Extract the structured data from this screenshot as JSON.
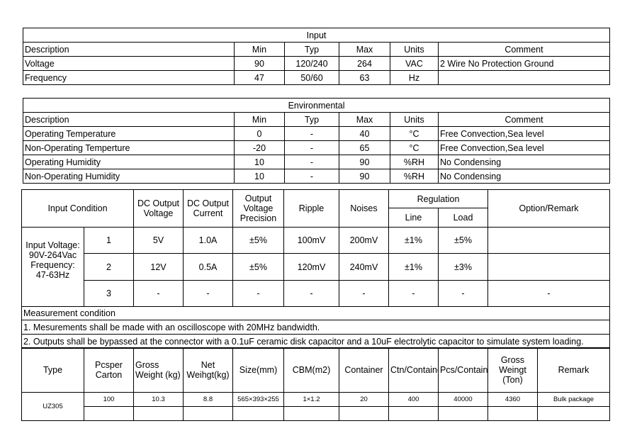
{
  "input": {
    "title": "Input",
    "headers": [
      "Description",
      "Min",
      "Typ",
      "Max",
      "Units",
      "Comment"
    ],
    "rows": [
      [
        "Voltage",
        "90",
        "120/240",
        "264",
        "VAC",
        "2 Wire No Protection Ground"
      ],
      [
        "Frequency",
        "47",
        "50/60",
        "63",
        "Hz",
        ""
      ]
    ]
  },
  "environmental": {
    "title": "Environmental",
    "headers": [
      "Description",
      "Min",
      "Typ",
      "Max",
      "Units",
      "Comment"
    ],
    "rows": [
      [
        "Operating Temperature",
        "0",
        "-",
        "40",
        "°C",
        "Free Convection,Sea level"
      ],
      [
        "Non-Operating Temperture",
        "-20",
        "-",
        "65",
        "°C",
        "Free Convection,Sea level"
      ],
      [
        "Operating Humidity",
        "10",
        "-",
        "90",
        "%RH",
        "No Condensing"
      ],
      [
        "Non-Operating Humidity",
        "10",
        "-",
        "90",
        "%RH",
        "No Condensing"
      ]
    ]
  },
  "output": {
    "headers": {
      "input_condition": "Input Condition",
      "dc_voltage": "DC Output Voltage",
      "dc_current": "DC Output Current",
      "precision": "Output Voltage Precision",
      "ripple": "Ripple",
      "noises": "Noises",
      "regulation": "Regulation",
      "line": "Line",
      "load": "Load",
      "remark": "Option/Remark"
    },
    "input_text": "Input Voltage: 90V-264Vac Frequency: 47-63Hz",
    "rows": [
      [
        "1",
        "5V",
        "1.0A",
        "±5%",
        "100mV",
        "200mV",
        "±1%",
        "±5%",
        ""
      ],
      [
        "2",
        "12V",
        "0.5A",
        "±5%",
        "120mV",
        "240mV",
        "±1%",
        "±3%",
        ""
      ],
      [
        "3",
        "-",
        "-",
        "-",
        "-",
        "-",
        "-",
        "-",
        "-"
      ]
    ],
    "measurement": [
      "Measurement condition",
      "1. Mesurements shall be made with an oscilloscope with 20MHz bandwidth.",
      "2. Outputs shall be bypassed at the connector with a 0.1uF ceramic disk capacitor and a 10uF electrolytic capacitor to simulate system loading."
    ]
  },
  "packing": {
    "headers": [
      "Type",
      "Pcsper Carton",
      "Gross Weight (kg)",
      "Net Weihgt(kg)",
      "Size(mm)",
      "CBM(m2)",
      "Container",
      "Ctn/Container",
      "Pcs/Container",
      "Gross Weingt (Ton)",
      "Remark"
    ],
    "type": "UZ305",
    "row": [
      "100",
      "10.3",
      "8.8",
      "565×393×255",
      "1×1.2",
      "20",
      "400",
      "40000",
      "4360",
      "Bulk package"
    ]
  }
}
